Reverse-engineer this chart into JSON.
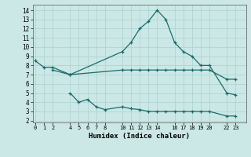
{
  "xlabel": "Humidex (Indice chaleur)",
  "bg_color": "#cbe8e6",
  "grid_color": "#b0d4d2",
  "line_color": "#1a6b6b",
  "series": [
    {
      "x": [
        0,
        1,
        2,
        4,
        10,
        11,
        12,
        13,
        14,
        15,
        16,
        17,
        18,
        19,
        20,
        22,
        23
      ],
      "y": [
        8.5,
        7.8,
        7.8,
        7.0,
        9.5,
        10.5,
        12.0,
        12.8,
        14.0,
        13.0,
        10.5,
        9.5,
        9.0,
        8.0,
        8.0,
        5.0,
        4.8
      ]
    },
    {
      "x": [
        2,
        4,
        10,
        11,
        12,
        13,
        14,
        15,
        16,
        17,
        18,
        19,
        20,
        22,
        23
      ],
      "y": [
        7.5,
        7.0,
        7.5,
        7.5,
        7.5,
        7.5,
        7.5,
        7.5,
        7.5,
        7.5,
        7.5,
        7.5,
        7.5,
        6.5,
        6.5
      ]
    },
    {
      "x": [
        4,
        5,
        6,
        7,
        8,
        10,
        11,
        12,
        13,
        14,
        15,
        16,
        17,
        18,
        19,
        20,
        22,
        23
      ],
      "y": [
        5.0,
        4.0,
        4.3,
        3.5,
        3.2,
        3.5,
        3.3,
        3.2,
        3.0,
        3.0,
        3.0,
        3.0,
        3.0,
        3.0,
        3.0,
        3.0,
        2.5,
        2.5
      ]
    }
  ],
  "xlim": [
    -0.3,
    24.2
  ],
  "ylim": [
    1.8,
    14.6
  ],
  "yticks": [
    2,
    3,
    4,
    5,
    6,
    7,
    8,
    9,
    10,
    11,
    12,
    13,
    14
  ],
  "xticks": [
    0,
    1,
    2,
    4,
    5,
    6,
    7,
    8,
    10,
    11,
    12,
    13,
    14,
    16,
    17,
    18,
    19,
    20,
    22,
    23
  ],
  "xtick_labels": [
    "0",
    "1",
    "2",
    "4",
    "5",
    "6",
    "7",
    "8",
    "10",
    "11",
    "12",
    "13",
    "14",
    "16",
    "17",
    "18",
    "19",
    "20",
    "22",
    "23"
  ]
}
